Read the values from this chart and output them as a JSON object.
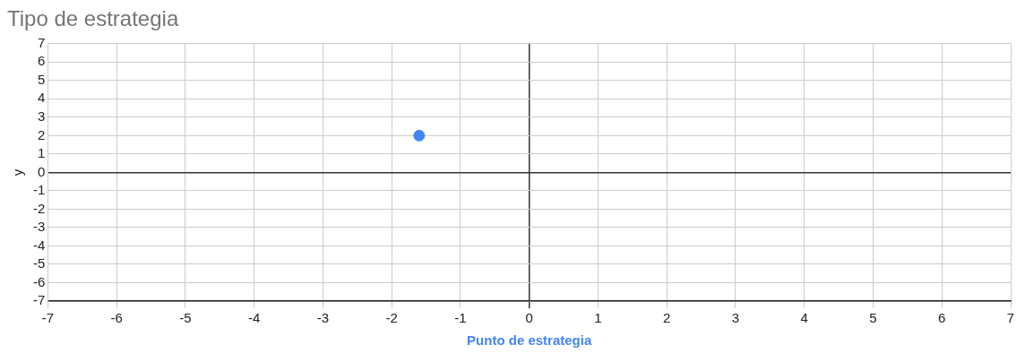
{
  "chart_data": {
    "type": "scatter",
    "title": "Tipo de estrategia",
    "xlabel": "Punto de estrategia",
    "ylabel": "y",
    "series": [
      {
        "color": "#4285f4",
        "x": [
          -1.6
        ],
        "values": [
          2
        ]
      }
    ],
    "xlim": [
      -7,
      7
    ],
    "ylim": [
      -7,
      7
    ],
    "xticks": [
      -7,
      -6,
      -5,
      -4,
      -3,
      -2,
      -1,
      0,
      1,
      2,
      3,
      4,
      5,
      6,
      7
    ],
    "yticks": [
      -7,
      -6,
      -5,
      -4,
      -3,
      -2,
      -1,
      0,
      1,
      2,
      3,
      4,
      5,
      6,
      7
    ],
    "grid": true,
    "legend": false,
    "marker": "circle"
  }
}
